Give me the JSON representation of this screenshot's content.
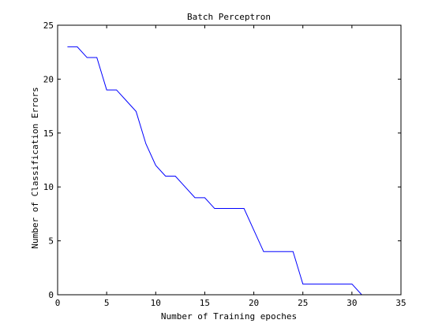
{
  "chart_data": {
    "type": "line",
    "title": "Batch Perceptron",
    "xlabel": "Number of Training epoches",
    "ylabel": "Number of Classification Errors",
    "xlim": [
      0,
      35
    ],
    "ylim": [
      0,
      25
    ],
    "xticks": [
      0,
      5,
      10,
      15,
      20,
      25,
      30,
      35
    ],
    "yticks": [
      0,
      5,
      10,
      15,
      20,
      25
    ],
    "grid": false,
    "series": [
      {
        "color": "#0000ff",
        "x": [
          1,
          2,
          3,
          4,
          5,
          6,
          7,
          8,
          9,
          10,
          11,
          12,
          13,
          14,
          15,
          16,
          17,
          18,
          19,
          20,
          21,
          22,
          23,
          24,
          25,
          26,
          27,
          28,
          29,
          30,
          31
        ],
        "y": [
          23,
          23,
          22,
          22,
          19,
          19,
          18,
          17,
          14,
          12,
          11,
          11,
          10,
          9,
          9,
          8,
          8,
          8,
          8,
          6,
          4,
          4,
          4,
          4,
          1,
          1,
          1,
          1,
          1,
          1,
          0
        ]
      }
    ]
  }
}
